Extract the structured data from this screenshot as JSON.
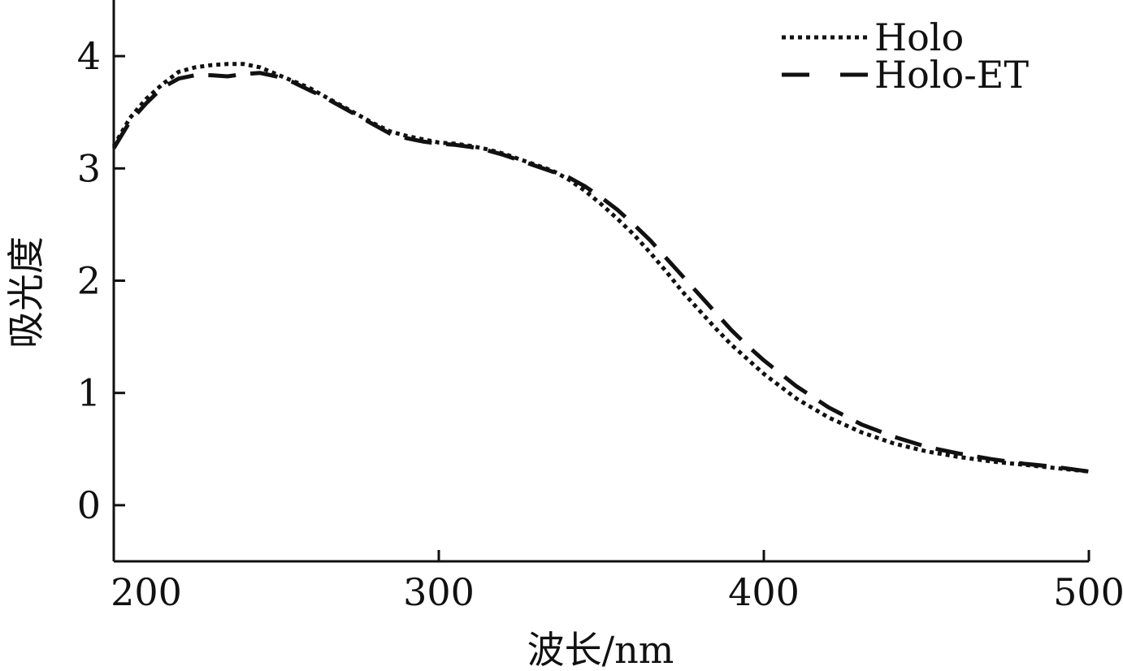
{
  "chart_data": {
    "type": "line",
    "xlabel": "波长/nm",
    "ylabel": "吸光度",
    "xlim": [
      200,
      500
    ],
    "ylim": [
      -0.5,
      4.5
    ],
    "x_ticks": [
      200,
      300,
      400,
      500
    ],
    "y_ticks": [
      0,
      1,
      2,
      3,
      4
    ],
    "x_tick_labels": [
      "200",
      "300",
      "400",
      "500"
    ],
    "y_tick_labels": [
      "0",
      "1",
      "2",
      "3",
      "4"
    ],
    "grid": false,
    "legend_position": "top-right",
    "series": [
      {
        "name": "Holo",
        "style": "dotted",
        "color": "#111111",
        "x": [
          200,
          205,
          210,
          215,
          220,
          225,
          230,
          235,
          240,
          245,
          250,
          255,
          260,
          265,
          270,
          275,
          280,
          285,
          290,
          295,
          300,
          305,
          310,
          315,
          320,
          325,
          330,
          335,
          340,
          345,
          350,
          355,
          360,
          365,
          370,
          375,
          380,
          385,
          390,
          395,
          400,
          410,
          420,
          430,
          440,
          450,
          460,
          470,
          480,
          490,
          500
        ],
        "y": [
          3.2,
          3.45,
          3.62,
          3.75,
          3.86,
          3.9,
          3.92,
          3.93,
          3.93,
          3.9,
          3.84,
          3.78,
          3.72,
          3.64,
          3.56,
          3.48,
          3.4,
          3.33,
          3.29,
          3.26,
          3.23,
          3.22,
          3.2,
          3.17,
          3.13,
          3.08,
          3.03,
          2.98,
          2.9,
          2.8,
          2.68,
          2.55,
          2.41,
          2.25,
          2.08,
          1.9,
          1.74,
          1.58,
          1.43,
          1.3,
          1.17,
          0.95,
          0.78,
          0.65,
          0.55,
          0.48,
          0.43,
          0.39,
          0.36,
          0.33,
          0.3
        ]
      },
      {
        "name": "Holo-ET",
        "style": "dashed",
        "color": "#111111",
        "x": [
          200,
          205,
          210,
          215,
          220,
          225,
          230,
          235,
          240,
          245,
          250,
          255,
          260,
          265,
          270,
          275,
          280,
          285,
          290,
          295,
          300,
          305,
          310,
          315,
          320,
          325,
          330,
          335,
          340,
          345,
          350,
          355,
          360,
          365,
          370,
          375,
          380,
          385,
          390,
          395,
          400,
          410,
          420,
          430,
          440,
          450,
          460,
          470,
          480,
          490,
          500
        ],
        "y": [
          3.18,
          3.42,
          3.58,
          3.72,
          3.8,
          3.83,
          3.83,
          3.82,
          3.84,
          3.85,
          3.82,
          3.77,
          3.7,
          3.63,
          3.55,
          3.47,
          3.39,
          3.31,
          3.27,
          3.24,
          3.22,
          3.21,
          3.19,
          3.16,
          3.12,
          3.07,
          3.02,
          2.97,
          2.92,
          2.84,
          2.74,
          2.63,
          2.5,
          2.36,
          2.2,
          2.04,
          1.88,
          1.72,
          1.56,
          1.42,
          1.29,
          1.06,
          0.87,
          0.72,
          0.61,
          0.52,
          0.46,
          0.41,
          0.37,
          0.34,
          0.3
        ]
      }
    ]
  }
}
